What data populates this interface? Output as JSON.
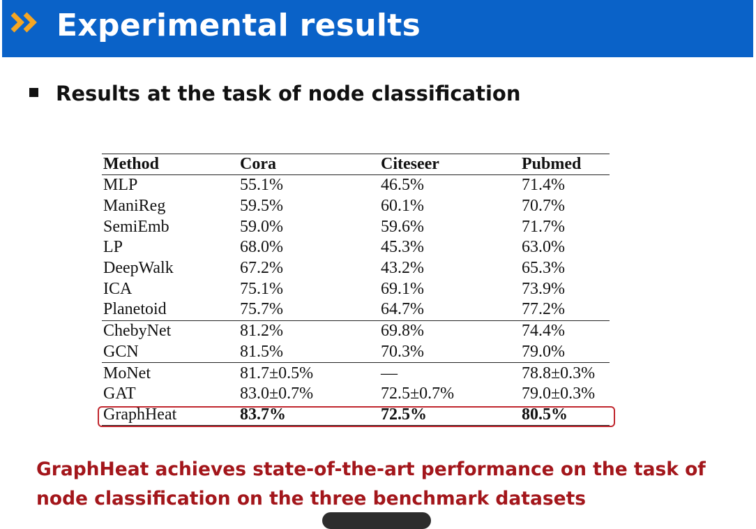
{
  "header": {
    "title": "Experimental results",
    "background_color": "#0a62c8",
    "icon": "double-chevron-right-icon",
    "icon_color": "#f5a623"
  },
  "bullet": {
    "text": "Results at the task of node classification"
  },
  "table": {
    "columns": [
      "Method",
      "Cora",
      "Citeseer",
      "Pubmed"
    ],
    "rows": [
      {
        "method": "MLP",
        "cora": "55.1%",
        "citeseer": "46.5%",
        "pubmed": "71.4%"
      },
      {
        "method": "ManiReg",
        "cora": "59.5%",
        "citeseer": "60.1%",
        "pubmed": "70.7%"
      },
      {
        "method": "SemiEmb",
        "cora": "59.0%",
        "citeseer": "59.6%",
        "pubmed": "71.7%"
      },
      {
        "method": "LP",
        "cora": "68.0%",
        "citeseer": "45.3%",
        "pubmed": "63.0%"
      },
      {
        "method": "DeepWalk",
        "cora": "67.2%",
        "citeseer": "43.2%",
        "pubmed": "65.3%"
      },
      {
        "method": "ICA",
        "cora": "75.1%",
        "citeseer": "69.1%",
        "pubmed": "73.9%"
      },
      {
        "method": "Planetoid",
        "cora": "75.7%",
        "citeseer": "64.7%",
        "pubmed": "77.2%"
      },
      {
        "method": "ChebyNet",
        "cora": "81.2%",
        "citeseer": "69.8%",
        "pubmed": "74.4%"
      },
      {
        "method": "GCN",
        "cora": "81.5%",
        "citeseer": "70.3%",
        "pubmed": "79.0%"
      },
      {
        "method": "MoNet",
        "cora": "81.7±0.5%",
        "citeseer": "—",
        "pubmed": "78.8±0.3%"
      },
      {
        "method": "GAT",
        "cora": "83.0±0.7%",
        "citeseer": "72.5±0.7%",
        "pubmed": "79.0±0.3%"
      },
      {
        "method": "GraphHeat",
        "cora": "83.7%",
        "citeseer": "72.5%",
        "pubmed": "80.5%"
      }
    ],
    "highlight_color": "#c0262d"
  },
  "conclusion": {
    "text": "GraphHeat achieves state-of-the-art performance on the task of node classification on the three benchmark datasets",
    "color": "#a3161b"
  }
}
